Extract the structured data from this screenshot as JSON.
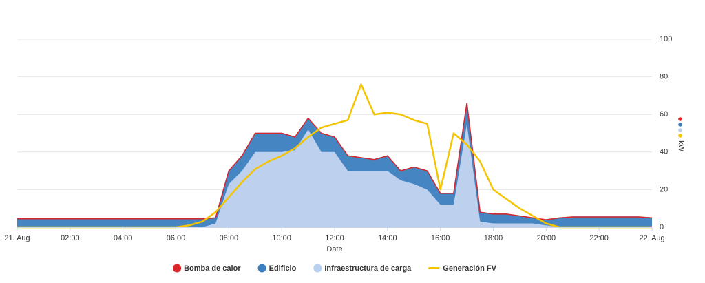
{
  "chart_data": {
    "type": "area",
    "x_axis_label": "Date",
    "y_axis_label": "kW",
    "x": [
      0,
      0.5,
      1,
      1.5,
      2,
      2.5,
      3,
      3.5,
      4,
      4.5,
      5,
      5.5,
      6,
      6.5,
      7,
      7.5,
      8,
      8.5,
      9,
      9.5,
      10,
      10.5,
      11,
      11.5,
      12,
      12.5,
      13,
      13.5,
      14,
      14.5,
      15,
      15.5,
      16,
      16.5,
      17,
      17.5,
      18,
      18.5,
      19,
      19.5,
      20,
      20.5,
      21,
      21.5,
      22,
      22.5,
      23,
      23.5,
      24
    ],
    "xlim": [
      0,
      24
    ],
    "xticks": [
      {
        "value": 0,
        "label": "21. Aug"
      },
      {
        "value": 2,
        "label": "02:00"
      },
      {
        "value": 4,
        "label": "04:00"
      },
      {
        "value": 6,
        "label": "06:00"
      },
      {
        "value": 8,
        "label": "08:00"
      },
      {
        "value": 10,
        "label": "10:00"
      },
      {
        "value": 12,
        "label": "12:00"
      },
      {
        "value": 14,
        "label": "14:00"
      },
      {
        "value": 16,
        "label": "16:00"
      },
      {
        "value": 18,
        "label": "18:00"
      },
      {
        "value": 20,
        "label": "20:00"
      },
      {
        "value": 22,
        "label": "22:00"
      },
      {
        "value": 24,
        "label": "22. Aug"
      }
    ],
    "ylim": [
      0,
      100
    ],
    "yticks": [
      0,
      20,
      40,
      60,
      80,
      100
    ],
    "grid": true,
    "legend": "bottom",
    "series": [
      {
        "name": "Bomba de calor",
        "type": "area",
        "color": "#d9262b",
        "values": [
          0,
          0,
          0,
          0,
          0,
          0,
          0,
          0,
          0,
          0,
          0,
          0,
          0,
          0,
          0,
          0,
          0,
          0,
          0,
          0,
          0,
          0,
          0,
          0,
          0,
          0,
          0,
          0,
          0,
          0,
          0,
          0,
          0,
          0,
          0,
          0,
          0,
          0,
          0,
          0,
          0,
          0,
          0,
          0,
          0,
          0,
          0,
          0,
          0
        ]
      },
      {
        "name": "Edificio",
        "type": "area",
        "color": "#3b7fbf",
        "values": [
          4.5,
          4.5,
          4.5,
          4.5,
          4.5,
          4.5,
          4.5,
          4.5,
          4.5,
          4.5,
          4.5,
          4.5,
          4.5,
          4.5,
          4.5,
          3,
          7,
          8,
          10,
          10,
          10,
          7,
          6,
          10,
          8,
          8,
          7,
          6,
          8,
          5,
          9,
          10,
          6,
          6,
          11,
          5,
          5,
          5,
          4,
          3,
          3,
          5,
          5.5,
          5.5,
          5.5,
          5.5,
          5.5,
          5.5,
          5
        ]
      },
      {
        "name": "Infraestructura de carga",
        "type": "area",
        "color": "#b9cfee",
        "values": [
          0,
          0,
          0,
          0,
          0,
          0,
          0,
          0,
          0,
          0,
          0,
          0,
          0,
          0,
          0,
          2,
          23,
          30,
          40,
          40,
          40,
          41,
          52,
          40,
          40,
          30,
          30,
          30,
          30,
          25,
          23,
          20,
          12,
          12,
          55,
          3,
          2,
          2,
          2,
          2,
          1,
          0,
          0,
          0,
          0,
          0,
          0,
          0,
          0
        ]
      },
      {
        "name": "Generación FV",
        "type": "line",
        "color": "#f5c400",
        "values": [
          0,
          0,
          0,
          0,
          0,
          0,
          0,
          0,
          0,
          0,
          0,
          0,
          0,
          1,
          3,
          8,
          16,
          24,
          31,
          35,
          38,
          42,
          48,
          53,
          55,
          57,
          76,
          60,
          61,
          60,
          57,
          55,
          20,
          50,
          44,
          35,
          20,
          15,
          10,
          6,
          2,
          0,
          0,
          0,
          0,
          0,
          0,
          0,
          0
        ]
      }
    ]
  }
}
